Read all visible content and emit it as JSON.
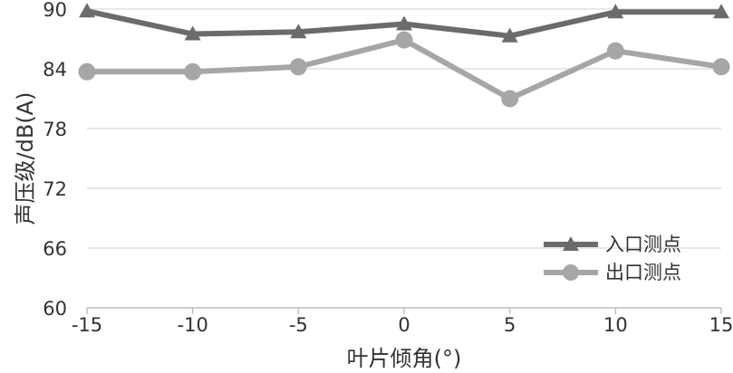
{
  "chart_data": {
    "type": "line",
    "xlabel": "叶片倾角(°)",
    "ylabel": "声压级/dB(A)",
    "x": [
      -15,
      -10,
      -5,
      0,
      5,
      10,
      15
    ],
    "ylim": [
      60,
      90
    ],
    "yticks": [
      60,
      66,
      72,
      78,
      84,
      90
    ],
    "grid": true,
    "legend_position": "bottom-right",
    "series": [
      {
        "name": "入口测点",
        "marker": "triangle",
        "color": "#6b6b6b",
        "values": [
          89.8,
          87.5,
          87.7,
          88.5,
          87.3,
          89.7,
          89.7
        ]
      },
      {
        "name": "出口测点",
        "marker": "circle",
        "color": "#a6a6a6",
        "values": [
          83.7,
          83.7,
          84.2,
          86.9,
          81.0,
          85.8,
          84.2
        ]
      }
    ]
  }
}
